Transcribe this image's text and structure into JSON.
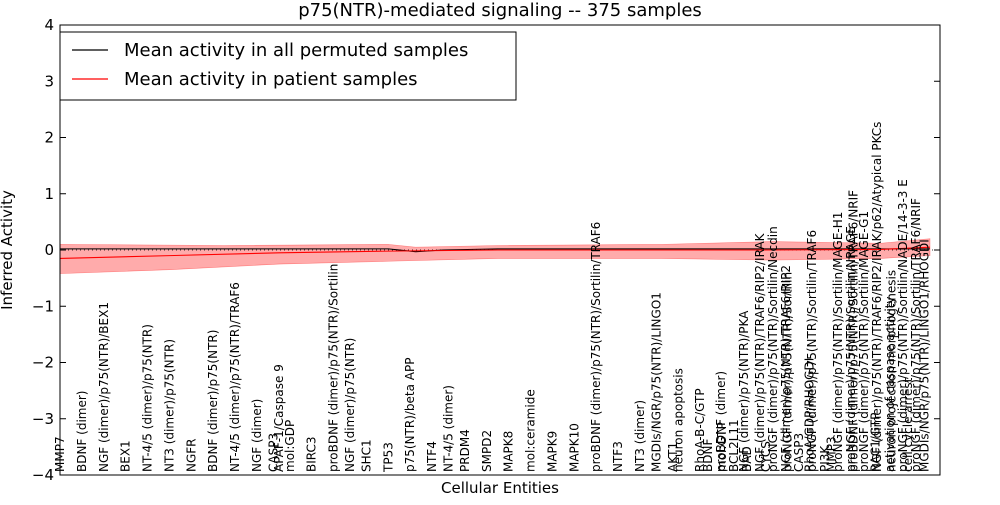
{
  "chart_data": {
    "type": "line",
    "title": "p75(NTR)-mediated signaling -- 375 samples",
    "xlabel": "Cellular Entities",
    "ylabel": "Inferred Activity",
    "ylim": [
      -4,
      4
    ],
    "yticks": [
      "−4",
      "−3",
      "−2",
      "−1",
      "0",
      "1",
      "2",
      "3",
      "4"
    ],
    "grid": false,
    "legend_placement": "top-left",
    "zero_line": "dotted",
    "colors": {
      "permuted": "#000000",
      "patient": "#ff0000",
      "band": "#ff6666"
    },
    "legend": [
      {
        "label": "Mean activity in all permuted samples",
        "color": "#000000"
      },
      {
        "label": "Mean activity in patient samples",
        "color": "#ff0000"
      }
    ],
    "x_count": 160,
    "series": [
      {
        "name": "Mean activity in all permuted samples",
        "points": [
          [
            0,
            0.02
          ],
          [
            30,
            0.02
          ],
          [
            60,
            0.02
          ],
          [
            65,
            -0.03
          ],
          [
            70,
            0.0
          ],
          [
            80,
            0.02
          ],
          [
            120,
            0.02
          ],
          [
            159,
            0.02
          ]
        ]
      },
      {
        "name": "Mean activity in patient samples",
        "points": [
          [
            0,
            -0.15
          ],
          [
            20,
            -0.1
          ],
          [
            40,
            -0.05
          ],
          [
            60,
            -0.02
          ],
          [
            80,
            0.0
          ],
          [
            100,
            0.0
          ],
          [
            130,
            0.0
          ],
          [
            150,
            0.01
          ],
          [
            159,
            0.05
          ]
        ]
      }
    ],
    "band": {
      "upper": [
        [
          0,
          0.1
        ],
        [
          30,
          0.08
        ],
        [
          60,
          0.1
        ],
        [
          65,
          0.05
        ],
        [
          80,
          0.08
        ],
        [
          110,
          0.1
        ],
        [
          130,
          0.15
        ],
        [
          150,
          0.12
        ],
        [
          159,
          0.2
        ]
      ],
      "lower": [
        [
          0,
          -0.42
        ],
        [
          20,
          -0.35
        ],
        [
          40,
          -0.25
        ],
        [
          60,
          -0.2
        ],
        [
          80,
          -0.15
        ],
        [
          110,
          -0.15
        ],
        [
          130,
          -0.18
        ],
        [
          150,
          -0.15
        ],
        [
          159,
          -0.1
        ]
      ]
    },
    "entities": [
      {
        "i": 0,
        "label": "MMP7"
      },
      {
        "i": 4,
        "label": "BDNF (dimer)"
      },
      {
        "i": 8,
        "label": "NGF (dimer)/p75(NTR)/BEX1"
      },
      {
        "i": 12,
        "label": "BEX1"
      },
      {
        "i": 16,
        "label": "NT-4/5 (dimer)/p75(NTR)"
      },
      {
        "i": 20,
        "label": "NT3 (dimer)/p75(NTR)"
      },
      {
        "i": 24,
        "label": "NGFR"
      },
      {
        "i": 28,
        "label": "BDNF (dimer)/p75(NTR)"
      },
      {
        "i": 32,
        "label": "NT-4/5 (dimer)/p75(NTR)/TRAF6"
      },
      {
        "i": 36,
        "label": "NGF (dimer)"
      },
      {
        "i": 39,
        "label": "CASP3"
      },
      {
        "i": 40,
        "label": "APAF-1/Caspase 9"
      },
      {
        "i": 42,
        "label": "mol:GDP"
      },
      {
        "i": 46,
        "label": "BIRC3"
      },
      {
        "i": 50,
        "label": "proBDNF (dimer)/p75(NTR)/Sortilin"
      },
      {
        "i": 53,
        "label": "NGF (dimer)/p75(NTR)"
      },
      {
        "i": 56,
        "label": "SHC1"
      },
      {
        "i": 60,
        "label": "TP53"
      },
      {
        "i": 64,
        "label": "p75(NTR)/beta APP"
      },
      {
        "i": 68,
        "label": "NTF4"
      },
      {
        "i": 71,
        "label": "NT-4/5 (dimer)"
      },
      {
        "i": 74,
        "label": "PRDM4"
      },
      {
        "i": 78,
        "label": "SMPD2"
      },
      {
        "i": 82,
        "label": "MAPK8"
      },
      {
        "i": 86,
        "label": "mol:ceramide"
      },
      {
        "i": 90,
        "label": "MAPK9"
      },
      {
        "i": 94,
        "label": "MAPK10"
      },
      {
        "i": 98,
        "label": "proBDNF (dimer)/p75(NTR)/Sortilin/TRAF6"
      },
      {
        "i": 102,
        "label": "NTF3"
      },
      {
        "i": 106,
        "label": "NT3 (dimer)"
      },
      {
        "i": 109,
        "label": "MGDIs/NGR/p75(NTR)/LINGO1"
      },
      {
        "i": 112,
        "label": "AKT1"
      },
      {
        "i": 113,
        "label": "neuron apoptosis"
      },
      {
        "i": 117,
        "label": "RhoA-B-C/GTP"
      },
      {
        "i": 121,
        "label": "mol:GTP"
      },
      {
        "i": 125,
        "label": "NGF (dimer)/p75(NTR)/PKA"
      },
      {
        "i": 129,
        "label": "CYCS"
      },
      {
        "i": 133,
        "label": "proNGF (dimer)/p75(NTR)/Sortilin"
      },
      {
        "i": 137,
        "label": "RhoA/GDP/RHOGDI"
      },
      {
        "i": 141,
        "label": "MMP3"
      },
      {
        "i": 145,
        "label": "proBDNF (dimer)/p75(NTR)/Sortilin/TRAF6/NRIF"
      },
      {
        "i": 149,
        "label": "RAC1/GTP"
      },
      {
        "i": 152,
        "label": "neuron projection morphogenesis"
      },
      {
        "i": 155,
        "label": "cell cycle arrest"
      },
      {
        "i": 158,
        "label": "MGDIs/NGR/p75(NTR)/LINGO1/RHOGDI"
      }
    ],
    "entities_right": [
      "BDNF",
      "proBDNF (dimer)",
      "BCL2L11",
      "BAD",
      "NGF (dimer)/p75(NTR)/TRAF6/RIP2/IRAK",
      "proNGF (dimer)/p75(NTR)/Sortilin/Necdin",
      "NGF (dimer)/p75(NTR)/TRAF6/RIP2",
      "CASP3",
      "proNGF (dimer)/p75(NTR)/Sortilin/TRAF6",
      "PI3K",
      "proNGF (dimer)/p75(NTR)/Sortilin/MAGE-H1",
      "proNGF (dimer)/p75(NTR)/Sortilin/NRAGE",
      "proNGF (dimer)/p75(NTR)/Sortilin/MAGE-G1",
      "NGF (dimer)/p75(NTR)/TRAF6/RIP2/IRAK/p62/Atypical PKCs",
      "activation of caspase activity",
      "proNGF (dimer)/p75(NTR)/Sortilin/NADE/14-3-3 E",
      "proNGF (dimer)/p75(NTR)/Sortilin/TRAF6/NRIF"
    ]
  }
}
